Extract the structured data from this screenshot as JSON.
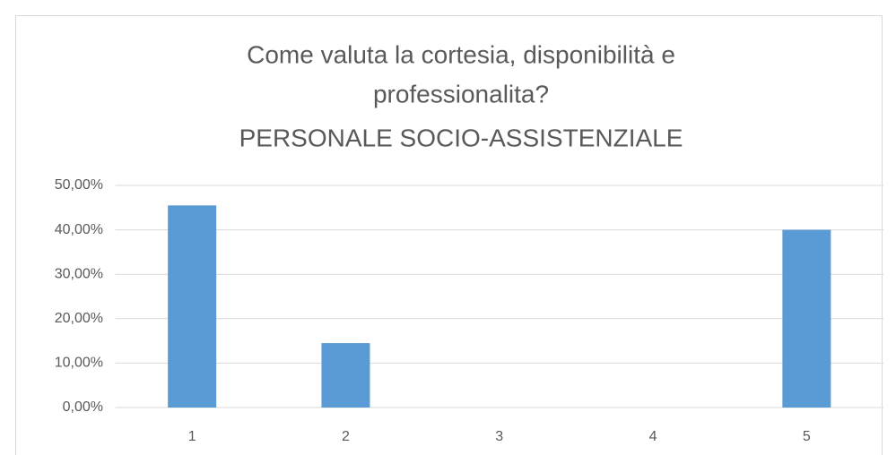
{
  "chart_data": {
    "type": "bar",
    "title": [
      "Come valuta la cortesia, disponibilità e",
      "professionalita?",
      "PERSONALE SOCIO-ASSISTENZIALE"
    ],
    "categories": [
      "1",
      "2",
      "3",
      "4",
      "5"
    ],
    "values": [
      45.5,
      14.5,
      0,
      0,
      40
    ],
    "color": "#5b9bd5",
    "ylim": [
      0,
      50
    ],
    "yticks": [
      {
        "value": 0,
        "label": "0,00%"
      },
      {
        "value": 10,
        "label": "10,00%"
      },
      {
        "value": 20,
        "label": "20,00%"
      },
      {
        "value": 30,
        "label": "30,00%"
      },
      {
        "value": 40,
        "label": "40,00%"
      },
      {
        "value": 50,
        "label": "50,00%"
      }
    ],
    "grid": true
  }
}
